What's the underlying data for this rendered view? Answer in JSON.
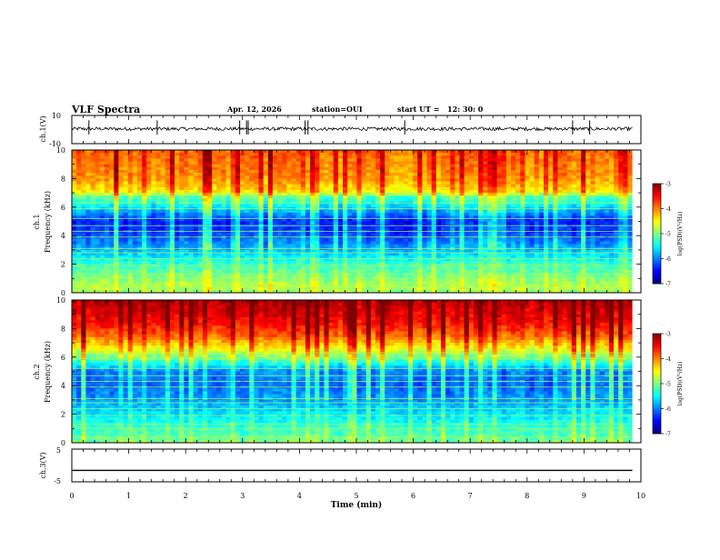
{
  "header": {
    "title": "VLF Spectra",
    "date": "Apr. 12, 2026",
    "station_label": "station=OUI",
    "start_label": "start UT =",
    "start_time": "12: 30: 0"
  },
  "colors": {
    "background": "#ffffff",
    "axis": "#000000",
    "trace": "#000000",
    "colormap": [
      "#00007f",
      "#0000ff",
      "#0080ff",
      "#00ffff",
      "#80ff80",
      "#ffff00",
      "#ff8000",
      "#ff0000",
      "#7f0000"
    ]
  },
  "chart_data": [
    {
      "type": "line",
      "name": "ch1-waveform",
      "ylabel": "ch.1(V)",
      "ylim": [
        -10,
        10
      ],
      "yticks": [
        "10",
        "-10"
      ],
      "xlim": [
        0,
        10
      ],
      "baseline_value": 0.5,
      "noise_amplitude": 1.2,
      "spikes_min": [
        0.3,
        1.5,
        2.95,
        3.07,
        3.1,
        4.1,
        4.15,
        5.85,
        8.8,
        9.1
      ]
    },
    {
      "type": "heatmap",
      "name": "ch1-spectrogram",
      "ylabel_line1": "ch.1",
      "ylabel_line2": "Frequency (kHz)",
      "ylim": [
        0,
        10
      ],
      "yticks": [
        "0",
        "2",
        "4",
        "6",
        "8",
        "10"
      ],
      "xlim": [
        0,
        10
      ],
      "data_end_min": 9.85,
      "z_label": "log(PSD)(V²/Hz)",
      "z_ticks": [
        "-3",
        "-4",
        "-5",
        "-6",
        "-7"
      ],
      "zlim": [
        -7,
        -3
      ],
      "profile_kHz_log": [
        [
          0,
          -4.9
        ],
        [
          0.5,
          -4.8
        ],
        [
          1,
          -5.0
        ],
        [
          2,
          -5.3
        ],
        [
          3,
          -5.8
        ],
        [
          4,
          -6.2
        ],
        [
          5,
          -6.4
        ],
        [
          6,
          -5.6
        ],
        [
          6.8,
          -5.1
        ],
        [
          7,
          -4.5
        ],
        [
          8,
          -4.1
        ],
        [
          10,
          -3.9
        ]
      ],
      "band_kHz": [
        0.4,
        1.0,
        1.3,
        1.9,
        2.4,
        2.8,
        3.1,
        3.9,
        4.3,
        4.7,
        5.2,
        5.9,
        6.3
      ]
    },
    {
      "type": "heatmap",
      "name": "ch2-spectrogram",
      "ylabel_line1": "ch.2",
      "ylabel_line2": "Frequency (kHz)",
      "ylim": [
        0,
        10
      ],
      "yticks": [
        "0",
        "2",
        "4",
        "6",
        "8",
        "10"
      ],
      "xlim": [
        0,
        10
      ],
      "data_end_min": 9.85,
      "z_label": "log(PSD)(V²/Hz)",
      "z_ticks": [
        "-3",
        "-4",
        "-5",
        "-6",
        "-7"
      ],
      "zlim": [
        -7,
        -3
      ],
      "profile_kHz_log": [
        [
          0,
          -5.0
        ],
        [
          0.5,
          -5.2
        ],
        [
          1,
          -5.3
        ],
        [
          2,
          -5.6
        ],
        [
          3,
          -5.9
        ],
        [
          4,
          -6.1
        ],
        [
          5,
          -6.0
        ],
        [
          5.8,
          -5.2
        ],
        [
          6.5,
          -4.6
        ],
        [
          7.5,
          -3.9
        ],
        [
          8.5,
          -3.5
        ],
        [
          10,
          -3.2
        ]
      ],
      "band_kHz": [
        0.4,
        1.0,
        1.3,
        1.9,
        2.4,
        2.8,
        3.1,
        3.9,
        4.3,
        4.7,
        5.2,
        5.9,
        6.3
      ]
    },
    {
      "type": "line",
      "name": "ch3-waveform",
      "ylabel": "ch.3(V)",
      "ylim": [
        -5,
        5
      ],
      "yticks": [
        "5",
        "-5"
      ],
      "xlim": [
        0,
        10
      ],
      "baseline_value": -1.5,
      "x": [
        0,
        9.85
      ],
      "y": [
        -1.5,
        -1.5
      ]
    }
  ],
  "xaxis": {
    "label": "Time (min)",
    "ticks": [
      "0",
      "1",
      "2",
      "3",
      "4",
      "5",
      "6",
      "7",
      "8",
      "9",
      "10"
    ]
  }
}
